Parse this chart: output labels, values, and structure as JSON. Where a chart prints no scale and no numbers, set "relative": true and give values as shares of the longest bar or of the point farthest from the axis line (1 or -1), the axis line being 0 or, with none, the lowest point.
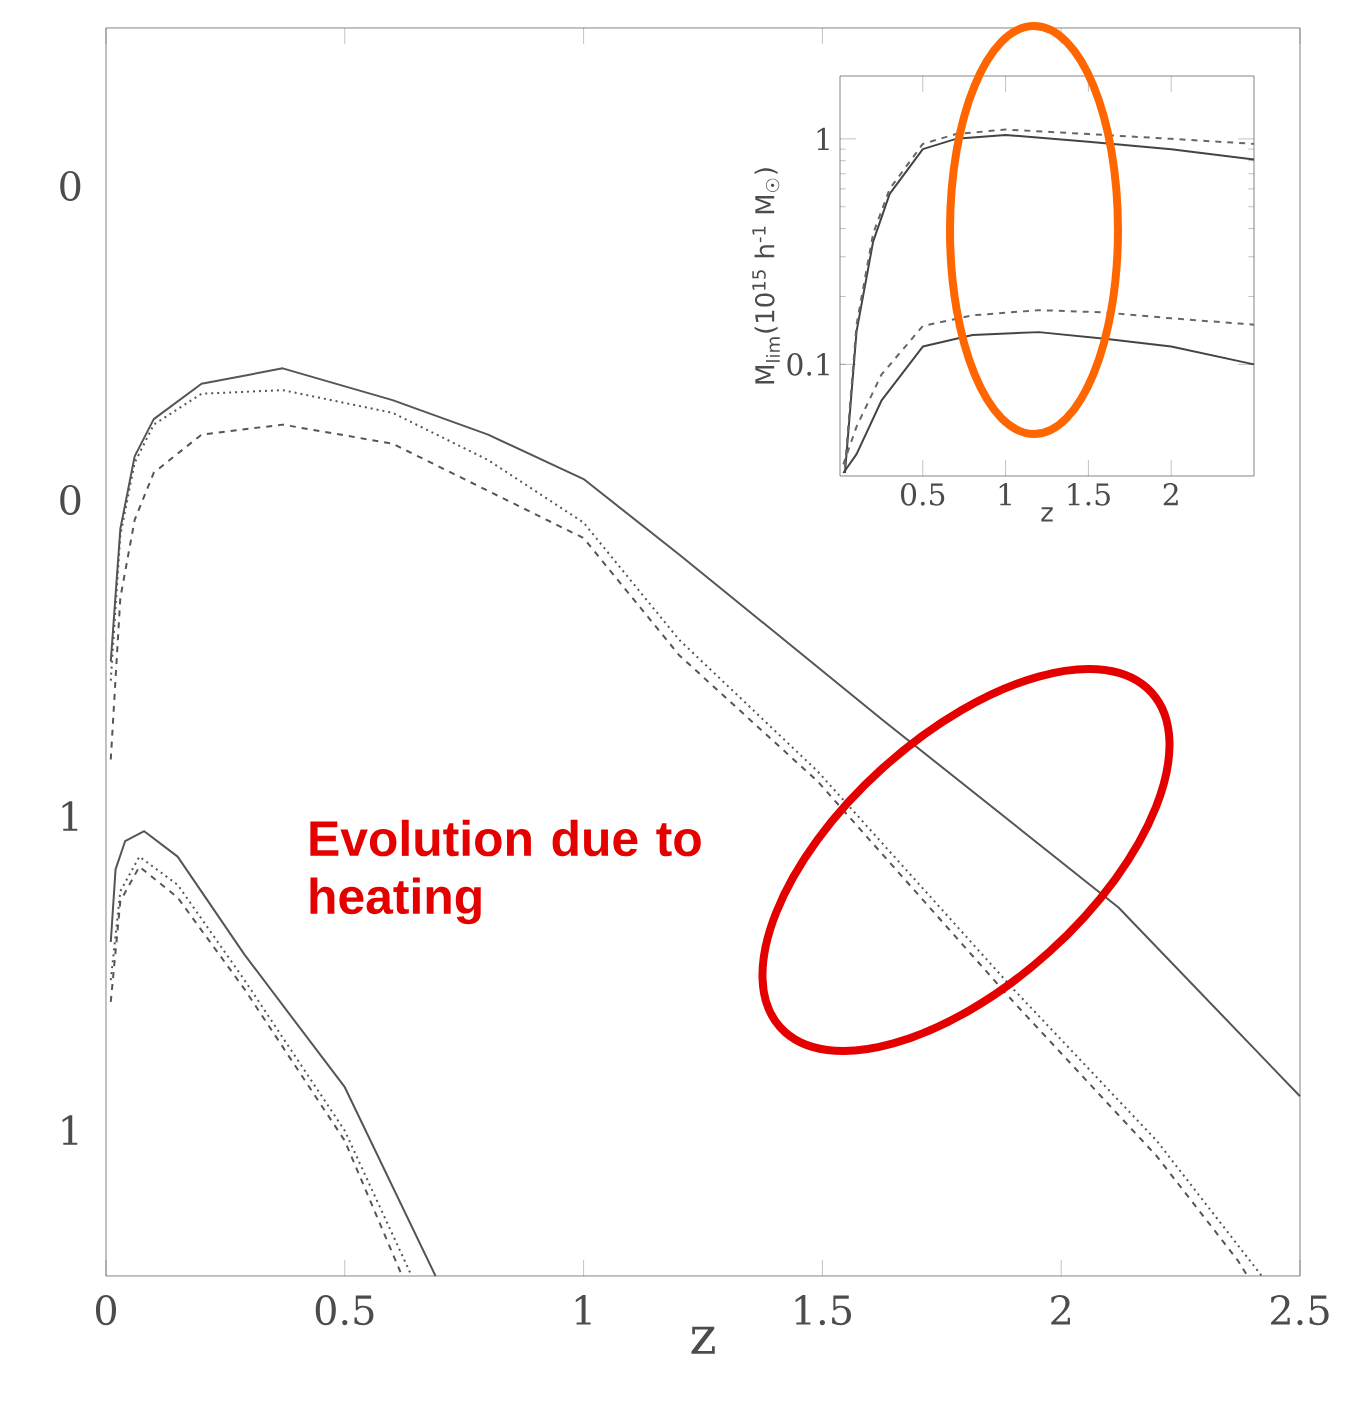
{
  "chart_data": [
    {
      "type": "line",
      "xlabel": "z",
      "xlim": [
        0,
        2.5
      ],
      "xticks": [
        0,
        0.5,
        1,
        1.5,
        2,
        2.5
      ],
      "relative": true,
      "annotations": [
        "0",
        "0",
        "1",
        "1",
        "Evolution due to heating"
      ],
      "series": [
        {
          "color": "#555555",
          "line_style": "solid",
          "x": [
            0.01,
            0.03,
            0.06,
            0.1,
            0.2,
            0.37,
            0.6,
            0.8,
            1.0,
            1.2,
            1.63,
            2.12,
            2.5
          ],
          "values": [
            0.677,
            0.823,
            0.903,
            0.944,
            0.983,
            1,
            0.965,
            0.927,
            0.878,
            0.795,
            0.611,
            0.406,
            0.198
          ]
        },
        {
          "color": "#555555",
          "line_style": "dotted",
          "x": [
            0.01,
            0.03,
            0.06,
            0.1,
            0.2,
            0.37,
            0.6,
            0.8,
            1.0,
            1.2,
            1.49,
            1.9,
            2.2,
            2.42
          ],
          "values": [
            0.656,
            0.816,
            0.896,
            0.938,
            0.972,
            0.976,
            0.951,
            0.899,
            0.83,
            0.701,
            0.556,
            0.316,
            0.149,
            0
          ]
        },
        {
          "color": "#555555",
          "line_style": "dashed",
          "x": [
            0.01,
            0.03,
            0.06,
            0.1,
            0.2,
            0.37,
            0.6,
            0.8,
            1.0,
            1.2,
            1.49,
            1.9,
            2.2,
            2.37,
            2.39
          ],
          "values": [
            0.569,
            0.747,
            0.833,
            0.885,
            0.927,
            0.938,
            0.917,
            0.865,
            0.813,
            0.684,
            0.545,
            0.302,
            0.132,
            0.017,
            0
          ]
        },
        {
          "color": "#555555",
          "line_style": "solid",
          "x": [
            0.01,
            0.02,
            0.04,
            0.08,
            0.15,
            0.29,
            0.5,
            0.69
          ],
          "values": [
            0.368,
            0.448,
            0.479,
            0.49,
            0.462,
            0.354,
            0.208,
            0
          ]
        },
        {
          "color": "#555555",
          "line_style": "dotted",
          "x": [
            0.01,
            0.03,
            0.07,
            0.15,
            0.29,
            0.5,
            0.64
          ],
          "values": [
            0.326,
            0.424,
            0.462,
            0.431,
            0.326,
            0.16,
            0
          ]
        },
        {
          "color": "#555555",
          "line_style": "dashed",
          "x": [
            0.01,
            0.03,
            0.07,
            0.15,
            0.29,
            0.5,
            0.62
          ],
          "values": [
            0.302,
            0.413,
            0.451,
            0.417,
            0.316,
            0.149,
            0
          ]
        }
      ]
    },
    {
      "type": "line",
      "xlabel": "z",
      "ylabel": "M$_{lim}$(10$^{15}$ h$^{-1}$ M$_{☉}$)",
      "log": "y",
      "xlim": [
        0,
        2.5
      ],
      "xticks": [
        0.5,
        1,
        1.5,
        2
      ],
      "ylim": [
        0.032,
        1.9
      ],
      "yticks": [
        0.1,
        1
      ],
      "series": [
        {
          "color": "#444444",
          "line_style": "solid",
          "x": [
            0.03,
            0.1,
            0.2,
            0.3,
            0.5,
            0.7,
            1.0,
            1.5,
            2.0,
            2.5
          ],
          "values": [
            0.033,
            0.14,
            0.35,
            0.57,
            0.9,
            1.0,
            1.04,
            0.97,
            0.9,
            0.81
          ]
        },
        {
          "color": "#666666",
          "line_style": "dashed",
          "x": [
            0.03,
            0.1,
            0.2,
            0.3,
            0.5,
            0.7,
            1.0,
            1.5,
            2.0,
            2.5
          ],
          "values": [
            0.035,
            0.15,
            0.38,
            0.6,
            0.95,
            1.05,
            1.1,
            1.05,
            1.0,
            0.95
          ]
        },
        {
          "color": "#444444",
          "line_style": "solid",
          "x": [
            0.02,
            0.1,
            0.25,
            0.5,
            0.8,
            1.2,
            1.6,
            2.0,
            2.5
          ],
          "values": [
            0.033,
            0.04,
            0.069,
            0.12,
            0.135,
            0.139,
            0.13,
            0.12,
            0.1
          ]
        },
        {
          "color": "#666666",
          "line_style": "dashed",
          "x": [
            0.02,
            0.1,
            0.25,
            0.5,
            0.8,
            1.2,
            1.6,
            2.0,
            2.5
          ],
          "values": [
            0.036,
            0.053,
            0.09,
            0.148,
            0.165,
            0.174,
            0.17,
            0.16,
            0.15
          ]
        }
      ]
    }
  ]
}
